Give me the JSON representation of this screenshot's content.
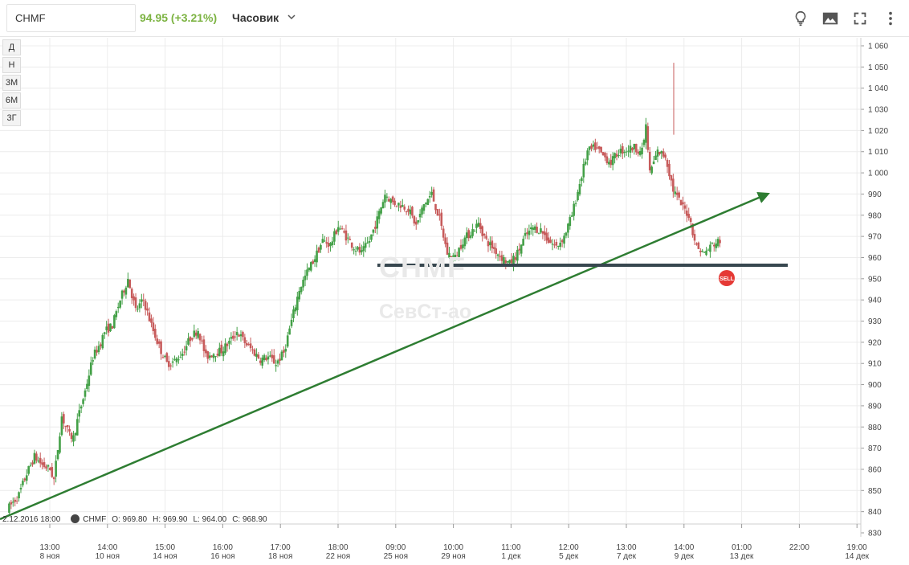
{
  "header": {
    "ticker": "CHMF",
    "price": "94.95 (+3.21%)",
    "interval": "Часовик",
    "icons": [
      "lightbulb-icon",
      "image-icon",
      "fullscreen-icon",
      "more-vert-icon"
    ]
  },
  "periods": [
    "Д",
    "Н",
    "3М",
    "6М",
    "3Г"
  ],
  "watermark": {
    "ticker": "CHMF",
    "name": "СевСт-ао"
  },
  "legend": {
    "date": "2.12.2016 18:00",
    "ticker": "CHMF",
    "open": "O: 969.80",
    "high": "H: 969.90",
    "low": "L: 964.00",
    "close": "C: 968.90"
  },
  "colors": {
    "up": "#43a047",
    "down": "#c75b5b",
    "trendline": "#2e7d32",
    "level": "#37474f",
    "sell": "#e53935",
    "price": "#7cb342"
  },
  "chart_data": {
    "type": "candlestick",
    "y_ticks": [
      "1 060",
      "1 050",
      "1 040",
      "1 030",
      "1 020",
      "1 010",
      "1 000",
      "990",
      "980",
      "970",
      "960",
      "950",
      "940",
      "930",
      "920",
      "910",
      "900",
      "890",
      "880",
      "870",
      "860",
      "850",
      "840",
      "830"
    ],
    "ylim": [
      830,
      1060
    ],
    "x_ticks": [
      {
        "time": "13:00",
        "date": "8 ноя"
      },
      {
        "time": "14:00",
        "date": "10 ноя"
      },
      {
        "time": "15:00",
        "date": "14 ноя"
      },
      {
        "time": "16:00",
        "date": "16 ноя"
      },
      {
        "time": "17:00",
        "date": "18 ноя"
      },
      {
        "time": "18:00",
        "date": "22 ноя"
      },
      {
        "time": "09:00",
        "date": "25 ноя"
      },
      {
        "time": "10:00",
        "date": "29 ноя"
      },
      {
        "time": "11:00",
        "date": "1 дек"
      },
      {
        "time": "12:00",
        "date": "5 дек"
      },
      {
        "time": "13:00",
        "date": "7 дек"
      },
      {
        "time": "14:00",
        "date": "9 дек"
      },
      {
        "time": "01:00",
        "date": "13 дек"
      },
      {
        "time": "22:00",
        "date": ""
      },
      {
        "time": "19:00",
        "date": "14 дек"
      }
    ],
    "price_path": [
      [
        0,
        841
      ],
      [
        3,
        848
      ],
      [
        5,
        858
      ],
      [
        7,
        866
      ],
      [
        9,
        862
      ],
      [
        11,
        860
      ],
      [
        12,
        855
      ],
      [
        13,
        870
      ],
      [
        14,
        885
      ],
      [
        16,
        876
      ],
      [
        17,
        875
      ],
      [
        18,
        883
      ],
      [
        20,
        897
      ],
      [
        22,
        913
      ],
      [
        24,
        920
      ],
      [
        25,
        925
      ],
      [
        27,
        928
      ],
      [
        29,
        940
      ],
      [
        31,
        950
      ],
      [
        33,
        935
      ],
      [
        35,
        940
      ],
      [
        37,
        928
      ],
      [
        39,
        918
      ],
      [
        41,
        910
      ],
      [
        43,
        911
      ],
      [
        45,
        915
      ],
      [
        47,
        922
      ],
      [
        49,
        926
      ],
      [
        51,
        913
      ],
      [
        53,
        915
      ],
      [
        55,
        916
      ],
      [
        57,
        920
      ],
      [
        59,
        925
      ],
      [
        61,
        920
      ],
      [
        63,
        916
      ],
      [
        65,
        912
      ],
      [
        67,
        913
      ],
      [
        69,
        910
      ],
      [
        71,
        915
      ],
      [
        73,
        930
      ],
      [
        75,
        945
      ],
      [
        77,
        953
      ],
      [
        79,
        960
      ],
      [
        81,
        968
      ],
      [
        83,
        966
      ],
      [
        85,
        975
      ],
      [
        87,
        970
      ],
      [
        89,
        965
      ],
      [
        91,
        962
      ],
      [
        93,
        968
      ],
      [
        95,
        978
      ],
      [
        97,
        990
      ],
      [
        99,
        986
      ],
      [
        101,
        985
      ],
      [
        103,
        983
      ],
      [
        105,
        975
      ],
      [
        107,
        985
      ],
      [
        109,
        990
      ],
      [
        111,
        978
      ],
      [
        113,
        962
      ],
      [
        115,
        960
      ],
      [
        117,
        968
      ],
      [
        119,
        972
      ],
      [
        121,
        976
      ],
      [
        123,
        968
      ],
      [
        125,
        964
      ],
      [
        127,
        960
      ],
      [
        129,
        957
      ],
      [
        131,
        962
      ],
      [
        133,
        970
      ],
      [
        135,
        974
      ],
      [
        137,
        973
      ],
      [
        139,
        968
      ],
      [
        141,
        965
      ],
      [
        143,
        970
      ],
      [
        145,
        980
      ],
      [
        147,
        995
      ],
      [
        149,
        1010
      ],
      [
        151,
        1012
      ],
      [
        153,
        1008
      ],
      [
        155,
        1005
      ],
      [
        157,
        1010
      ],
      [
        159,
        1011
      ],
      [
        161,
        1012
      ],
      [
        163,
        1010
      ],
      [
        164,
        1022
      ],
      [
        165,
        1000
      ],
      [
        167,
        1010
      ],
      [
        169,
        1008
      ],
      [
        171,
        992
      ],
      [
        173,
        985
      ],
      [
        175,
        980
      ],
      [
        177,
        965
      ],
      [
        179,
        962
      ],
      [
        181,
        966
      ],
      [
        183,
        968
      ]
    ]
  }
}
